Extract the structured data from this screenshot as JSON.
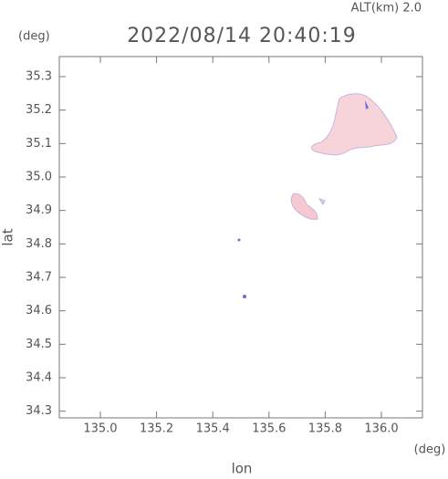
{
  "chart_data": {
    "type": "map",
    "title": "2022/08/14 20:40:19",
    "subtitle": "ALT(km) 2.0",
    "x_label": "lon",
    "y_label": "lat",
    "x_unit": "(deg)",
    "y_unit": "(deg)",
    "xlim": [
      134.854,
      136.146
    ],
    "ylim": [
      34.28,
      35.36
    ],
    "xticks": [
      {
        "value": 135,
        "label": "135.0"
      },
      135.2,
      135.4,
      135.6,
      135.8,
      {
        "value": 136,
        "label": "136.0"
      }
    ],
    "yticks": [
      34.3,
      34.4,
      34.5,
      34.6,
      34.7,
      34.8,
      34.9,
      {
        "value": 35,
        "label": "35.0"
      },
      35.1,
      35.2,
      35.3
    ]
  }
}
